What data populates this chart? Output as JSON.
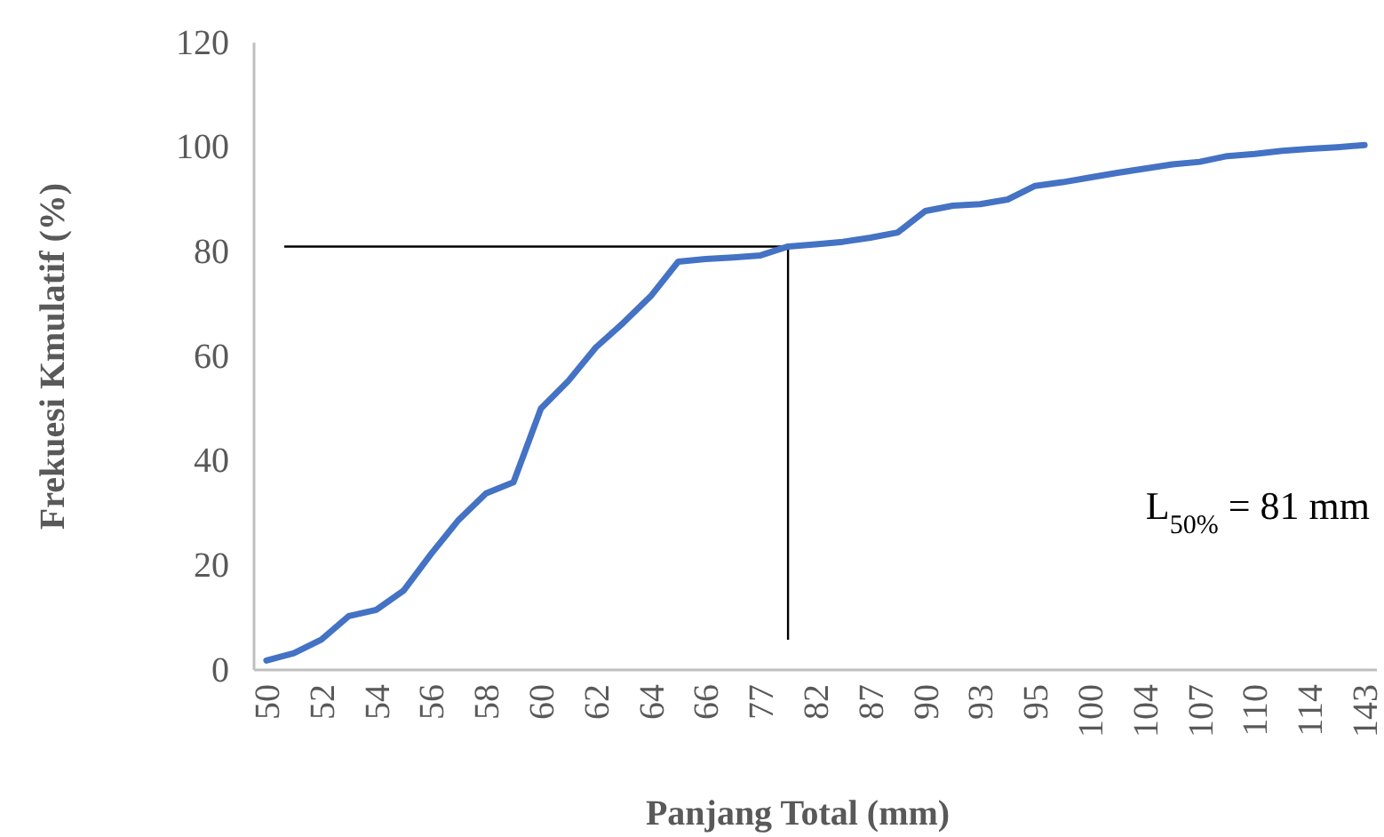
{
  "chart_data": {
    "type": "line",
    "xlabel": "Panjang Total (mm)",
    "ylabel": "Frekuesi Kmulatif (%)",
    "categories": [
      "50",
      null,
      "52",
      null,
      "54",
      null,
      "56",
      null,
      "58",
      null,
      "60",
      null,
      "62",
      null,
      "64",
      null,
      "66",
      null,
      "77",
      null,
      "82",
      null,
      "87",
      null,
      "90",
      null,
      "93",
      null,
      "95",
      null,
      "100",
      null,
      "104",
      null,
      "107",
      null,
      "110",
      null,
      "114",
      null,
      "143"
    ],
    "series": [
      {
        "color": "#4472c4",
        "values": [
          1.8,
          3.2,
          5.8,
          10.3,
          11.5,
          15.2,
          22.2,
          28.7,
          33.8,
          35.9,
          50,
          55.3,
          61.7,
          66.4,
          71.5,
          78.1,
          78.6,
          78.9,
          79.3,
          81,
          81.4,
          81.9,
          82.7,
          83.7,
          87.8,
          88.8,
          89.1,
          90,
          92.6,
          93.3,
          94.2,
          95.1,
          95.9,
          96.7,
          97.2,
          98.3,
          98.7,
          99.3,
          99.7,
          100,
          100.4
        ]
      }
    ],
    "ylim": [
      0,
      120
    ],
    "yticks": [
      0,
      20,
      40,
      60,
      80,
      100,
      120
    ],
    "ref_lines": [
      {
        "axis": "y",
        "value": 81,
        "color": "#000000"
      }
    ],
    "annotations": [
      "L$_{50%}$ = 81 mm"
    ],
    "grid": false,
    "marker": "none",
    "line_style": "solid"
  }
}
